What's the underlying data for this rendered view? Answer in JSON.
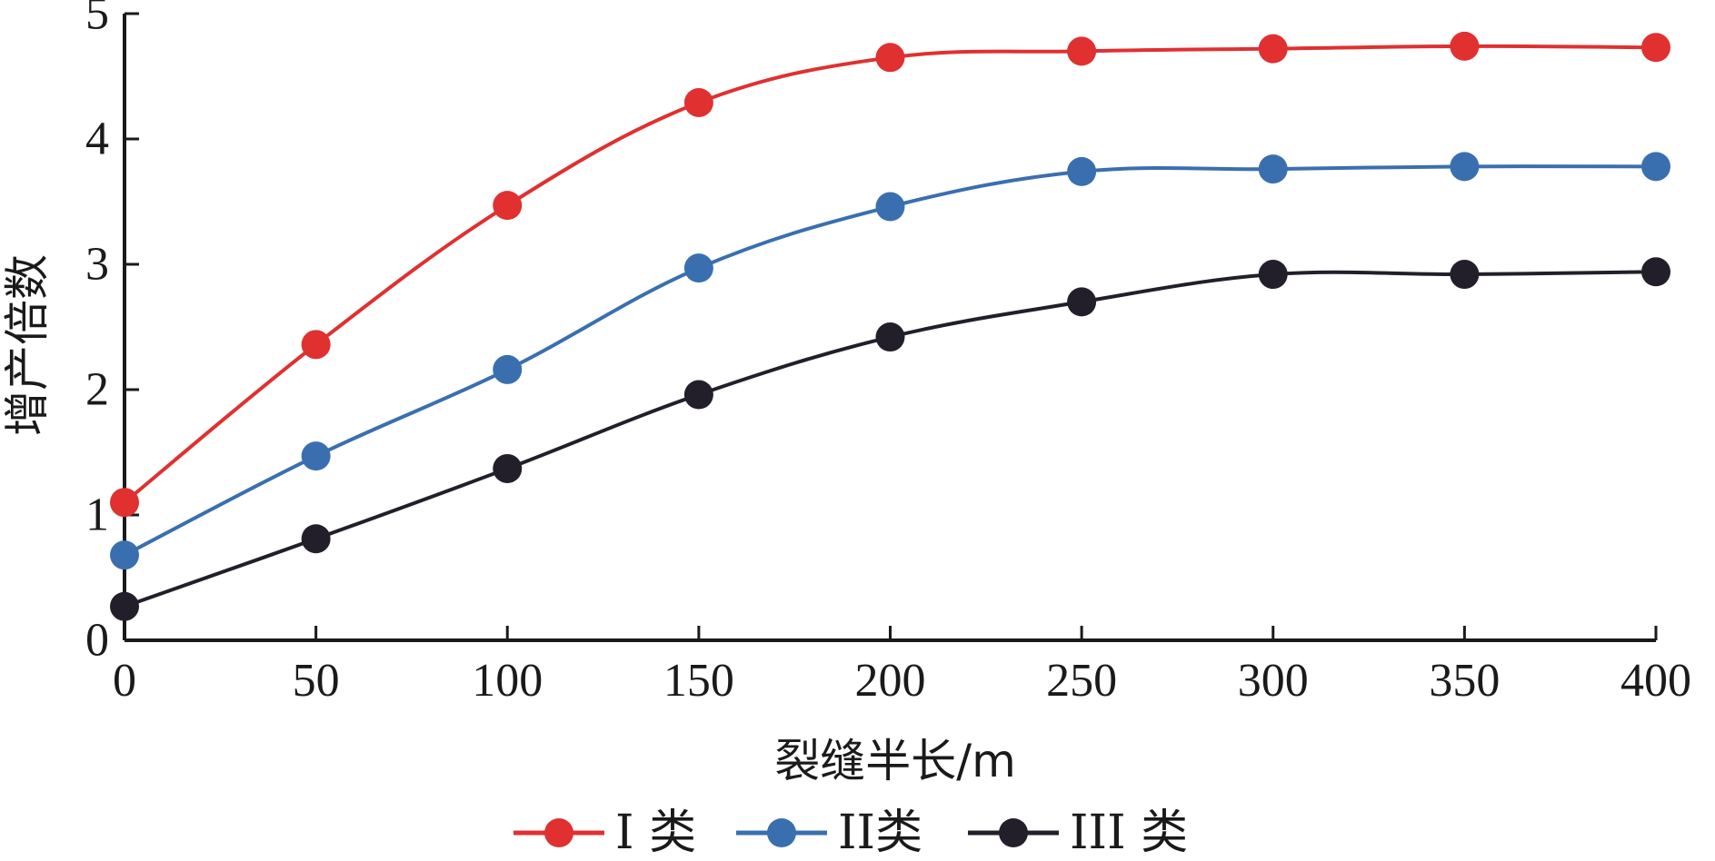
{
  "chart_data": {
    "type": "line",
    "xlabel": "裂缝半长/m",
    "ylabel": "增产倍数",
    "xlim": [
      0,
      400
    ],
    "ylim": [
      0,
      5
    ],
    "x_ticks": [
      "0",
      "50",
      "100",
      "150",
      "200",
      "250",
      "300",
      "350",
      "400"
    ],
    "y_ticks": [
      "0",
      "1",
      "2",
      "3",
      "4",
      "5"
    ],
    "grid": false,
    "legend_position": "bottom",
    "x": [
      0,
      50,
      100,
      150,
      200,
      250,
      300,
      350,
      400
    ],
    "series": [
      {
        "name": "I 类",
        "color": "#e03030",
        "values": [
          1.1,
          2.36,
          3.47,
          4.29,
          4.65,
          4.7,
          4.72,
          4.74,
          4.73
        ]
      },
      {
        "name": "II类",
        "color": "#3a6faf",
        "values": [
          0.68,
          1.47,
          2.16,
          2.97,
          3.46,
          3.74,
          3.76,
          3.78,
          3.78
        ]
      },
      {
        "name": "III 类",
        "color": "#231f2a",
        "values": [
          0.27,
          0.81,
          1.37,
          1.96,
          2.42,
          2.7,
          2.92,
          2.92,
          2.94
        ]
      }
    ]
  }
}
